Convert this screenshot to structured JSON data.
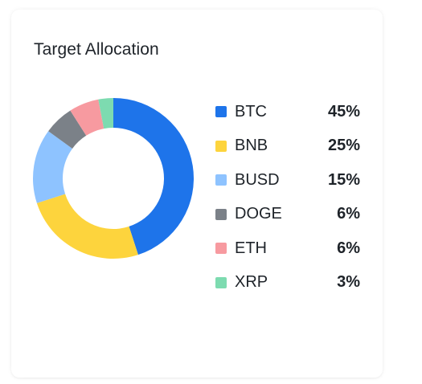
{
  "card": {
    "title": "Target Allocation"
  },
  "chart_data": {
    "type": "pie",
    "style": "donut",
    "categories": [
      "BTC",
      "BNB",
      "BUSD",
      "DOGE",
      "ETH",
      "XRP"
    ],
    "values": [
      45,
      25,
      15,
      6,
      6,
      3
    ],
    "value_labels": [
      "45%",
      "25%",
      "15%",
      "6%",
      "6%",
      "3%"
    ],
    "colors": [
      "#1e74ea",
      "#fdd43d",
      "#8ec3ff",
      "#7b8188",
      "#f79aa0",
      "#7ddbb0"
    ],
    "legend_placement": "right"
  }
}
